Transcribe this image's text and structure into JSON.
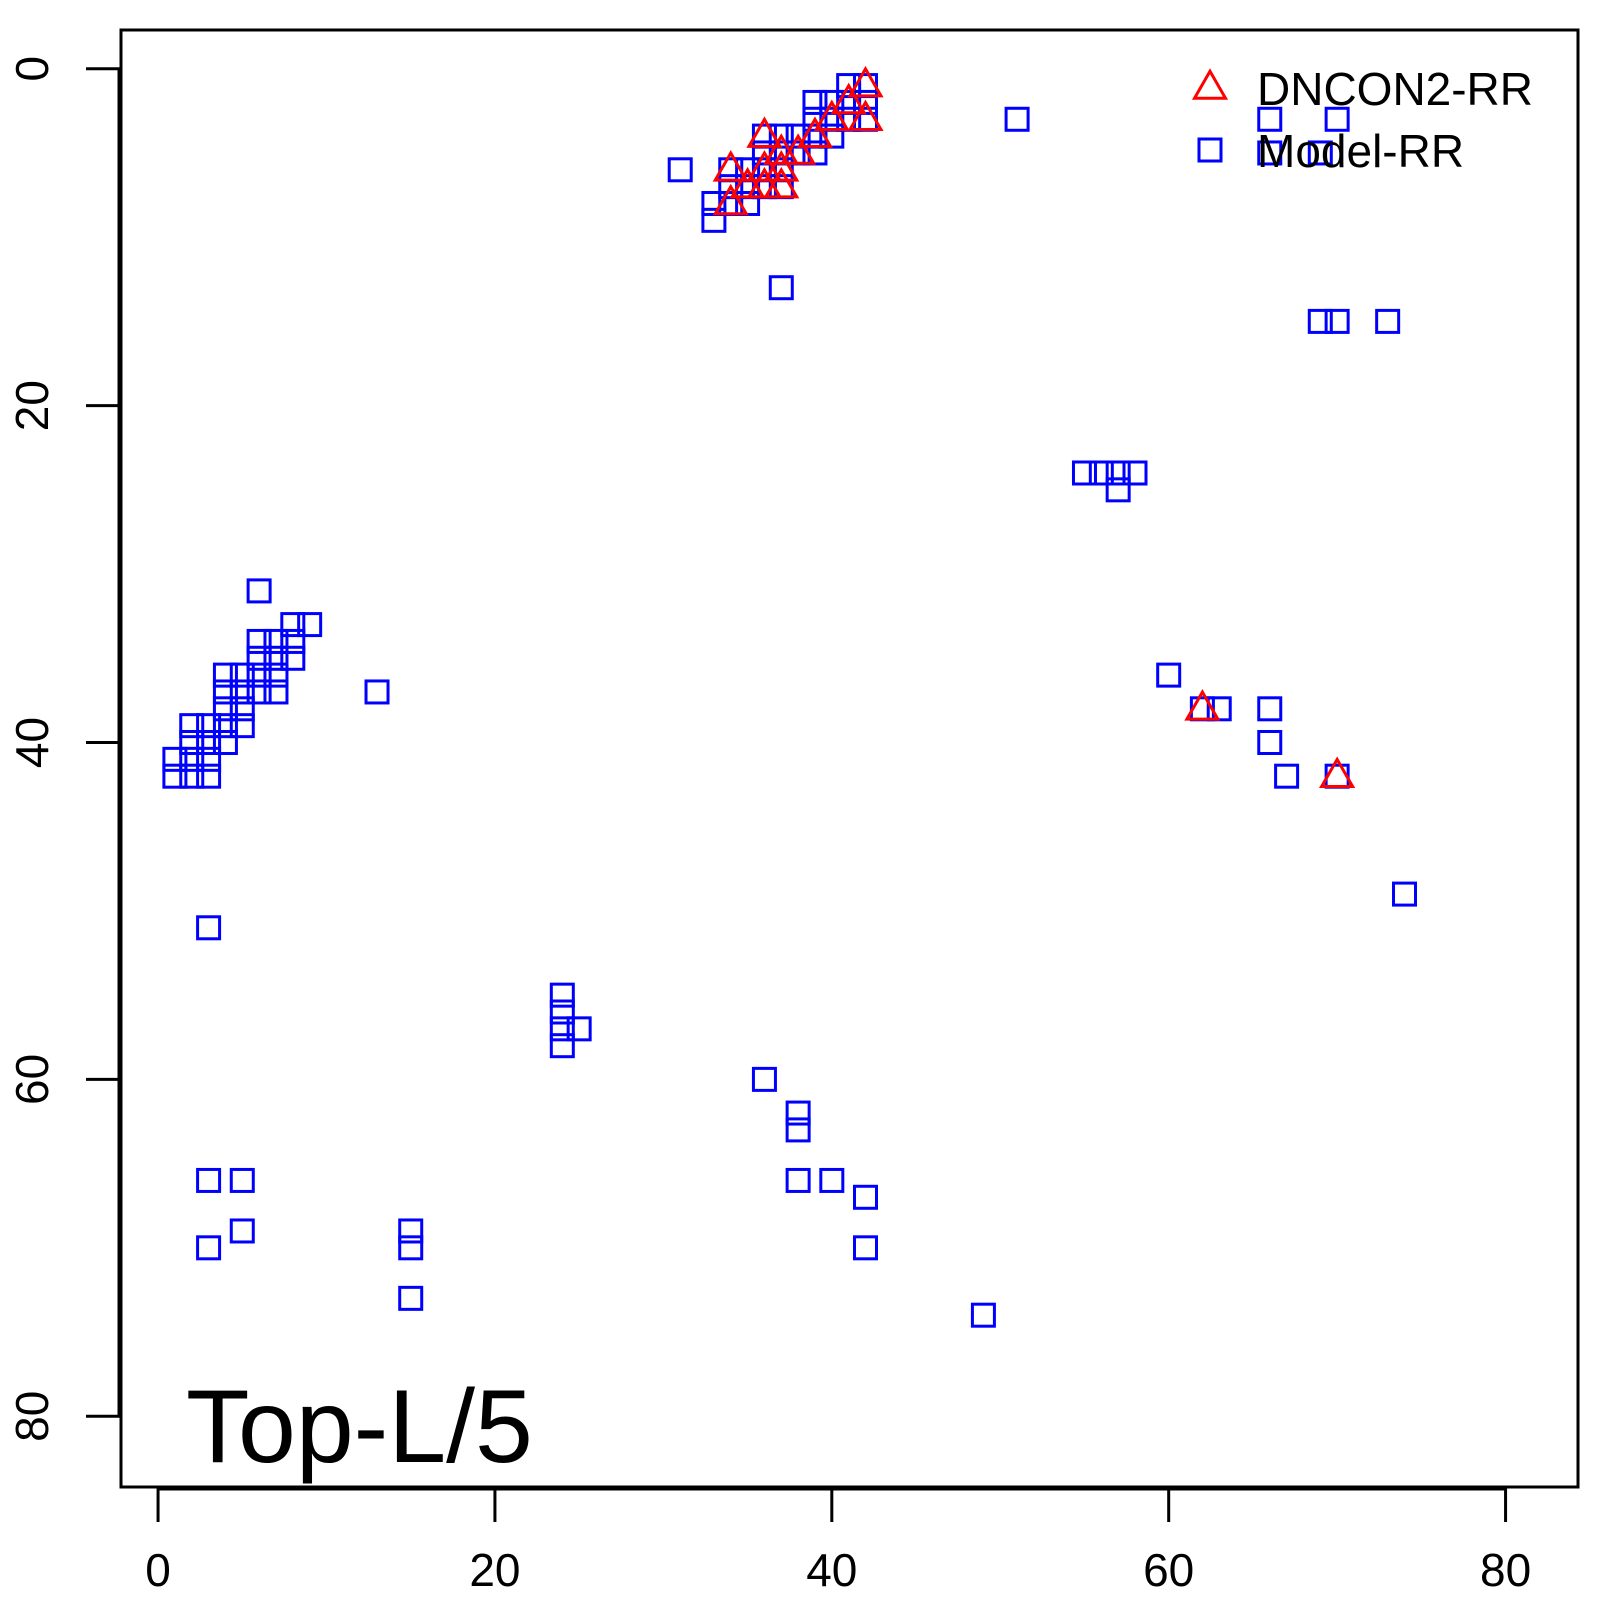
{
  "chart_data": {
    "type": "scatter",
    "title": "",
    "xlabel": "",
    "ylabel": "",
    "xlim": [
      -2.2,
      84.3
    ],
    "ylim": [
      -2.3,
      84.2
    ],
    "y_inverted": true,
    "x_ticks": [
      0,
      20,
      40,
      60,
      80
    ],
    "y_ticks": [
      0,
      20,
      40,
      60,
      80
    ],
    "grid": false,
    "legend_position": "top-right",
    "annotation": "Top-L/5",
    "series": [
      {
        "name": "DNCON2-RR",
        "marker": "triangle",
        "color": "#ff0000",
        "points": [
          [
            42,
            1
          ],
          [
            41,
            2
          ],
          [
            40,
            3
          ],
          [
            42,
            3
          ],
          [
            39,
            4
          ],
          [
            36,
            4
          ],
          [
            38,
            5
          ],
          [
            37,
            5
          ],
          [
            36,
            6
          ],
          [
            37,
            6
          ],
          [
            34,
            6
          ],
          [
            35,
            7
          ],
          [
            37,
            7
          ],
          [
            36,
            7
          ],
          [
            34,
            8
          ],
          [
            62,
            38
          ],
          [
            70,
            42
          ]
        ]
      },
      {
        "name": "Model-RR",
        "marker": "square",
        "color": "#0000ff",
        "points": [
          [
            41,
            1
          ],
          [
            42,
            1
          ],
          [
            39,
            2
          ],
          [
            40,
            2
          ],
          [
            41,
            2
          ],
          [
            42,
            2
          ],
          [
            39,
            3
          ],
          [
            40,
            3
          ],
          [
            41,
            3
          ],
          [
            42,
            3
          ],
          [
            51,
            3
          ],
          [
            66,
            3
          ],
          [
            70,
            3
          ],
          [
            36,
            4
          ],
          [
            37,
            4
          ],
          [
            38,
            4
          ],
          [
            39,
            4
          ],
          [
            40,
            4
          ],
          [
            36,
            5
          ],
          [
            37,
            5
          ],
          [
            38,
            5
          ],
          [
            39,
            5
          ],
          [
            66,
            5
          ],
          [
            69,
            5
          ],
          [
            31,
            6
          ],
          [
            34,
            6
          ],
          [
            35,
            6
          ],
          [
            36,
            6
          ],
          [
            37,
            6
          ],
          [
            34,
            7
          ],
          [
            35,
            7
          ],
          [
            36,
            7
          ],
          [
            37,
            7
          ],
          [
            33,
            8
          ],
          [
            34,
            8
          ],
          [
            35,
            8
          ],
          [
            33,
            9
          ],
          [
            37,
            13
          ],
          [
            69,
            15
          ],
          [
            70,
            15
          ],
          [
            73,
            15
          ],
          [
            55,
            24
          ],
          [
            56,
            24
          ],
          [
            57,
            24
          ],
          [
            58,
            24
          ],
          [
            57,
            25
          ],
          [
            6,
            31
          ],
          [
            8,
            33
          ],
          [
            9,
            33
          ],
          [
            6,
            34
          ],
          [
            7,
            34
          ],
          [
            8,
            34
          ],
          [
            6,
            35
          ],
          [
            7,
            35
          ],
          [
            8,
            35
          ],
          [
            4,
            36
          ],
          [
            5,
            36
          ],
          [
            6,
            36
          ],
          [
            7,
            36
          ],
          [
            60,
            36
          ],
          [
            4,
            37
          ],
          [
            5,
            37
          ],
          [
            6,
            37
          ],
          [
            7,
            37
          ],
          [
            13,
            37
          ],
          [
            4,
            38
          ],
          [
            5,
            38
          ],
          [
            62,
            38
          ],
          [
            63,
            38
          ],
          [
            66,
            38
          ],
          [
            2,
            39
          ],
          [
            3,
            39
          ],
          [
            4,
            39
          ],
          [
            5,
            39
          ],
          [
            2,
            40
          ],
          [
            3,
            40
          ],
          [
            4,
            40
          ],
          [
            66,
            40
          ],
          [
            1,
            41
          ],
          [
            2,
            41
          ],
          [
            3,
            41
          ],
          [
            1,
            42
          ],
          [
            2,
            42
          ],
          [
            3,
            42
          ],
          [
            67,
            42
          ],
          [
            70,
            42
          ],
          [
            74,
            49
          ],
          [
            3,
            51
          ],
          [
            24,
            55
          ],
          [
            24,
            56
          ],
          [
            24,
            57
          ],
          [
            25,
            57
          ],
          [
            24,
            58
          ],
          [
            36,
            60
          ],
          [
            38,
            62
          ],
          [
            38,
            63
          ],
          [
            3,
            66
          ],
          [
            5,
            66
          ],
          [
            38,
            66
          ],
          [
            40,
            66
          ],
          [
            42,
            67
          ],
          [
            5,
            69
          ],
          [
            15,
            69
          ],
          [
            3,
            70
          ],
          [
            15,
            70
          ],
          [
            42,
            70
          ],
          [
            15,
            73
          ],
          [
            49,
            74
          ]
        ]
      }
    ]
  }
}
